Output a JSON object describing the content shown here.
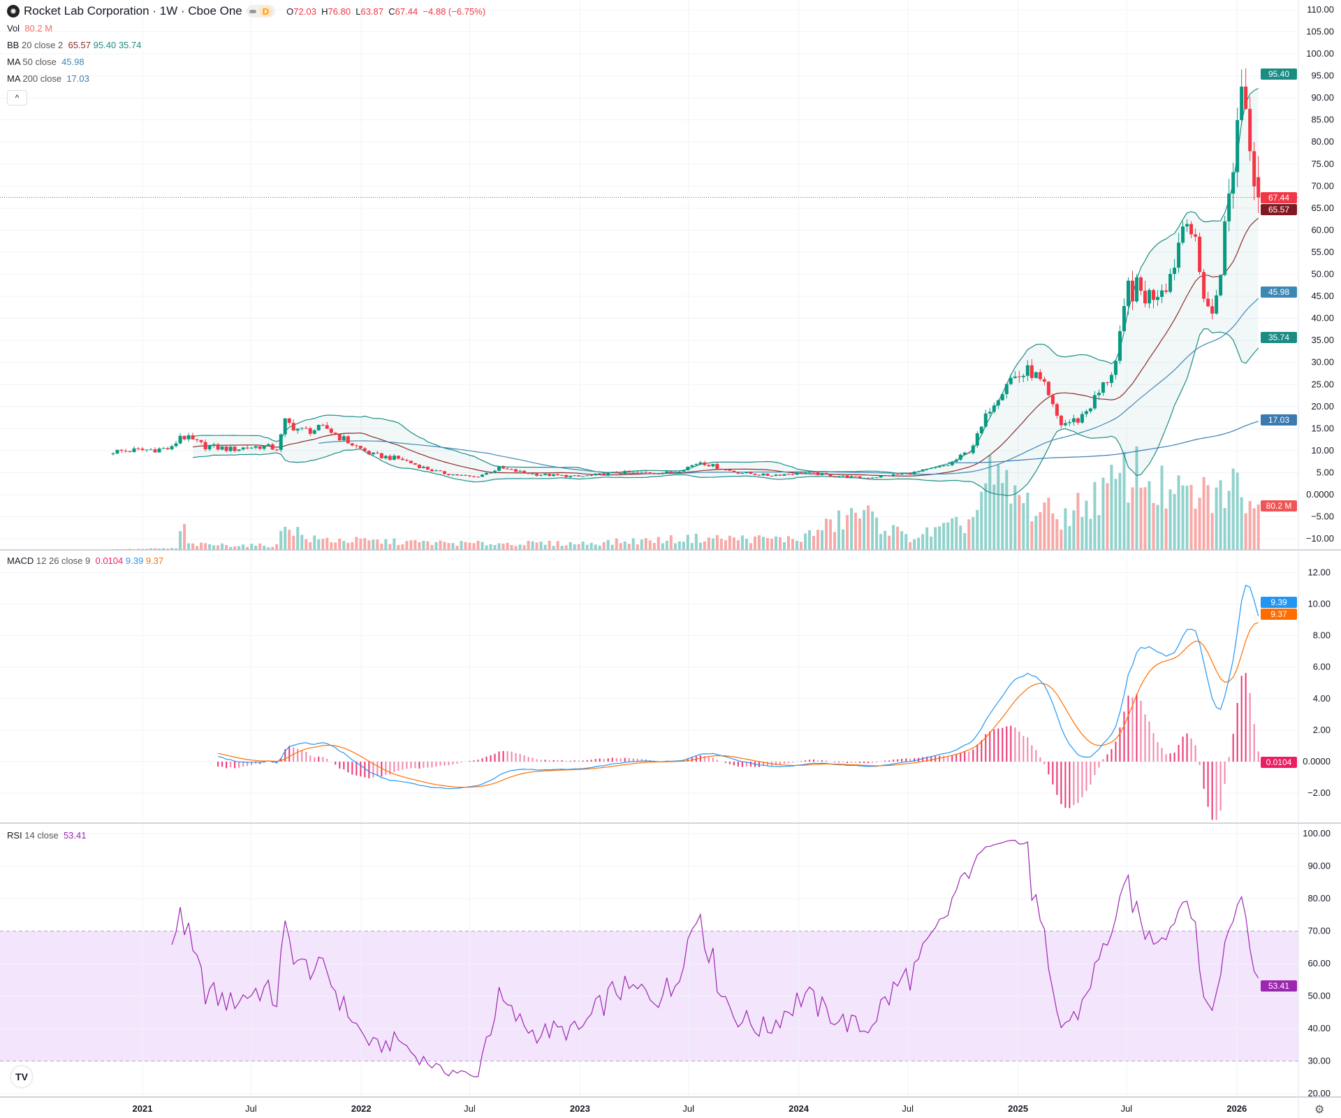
{
  "header": {
    "title": "Rocket Lab Corporation · 1W · Cboe One",
    "pill_label": "D",
    "open_label": "O",
    "open": "72.03",
    "high_label": "H",
    "high": "76.80",
    "low_label": "L",
    "low": "63.87",
    "close_label": "C",
    "close": "67.44",
    "change": "−4.88 (−6.75%)"
  },
  "indicators": {
    "vol": {
      "label": "Vol",
      "value": "80.2 M"
    },
    "bb": {
      "label": "BB",
      "params": "20 close 2",
      "basis": "65.57",
      "upper": "95.40",
      "lower": "35.74"
    },
    "ma50": {
      "label": "MA",
      "params": "50 close",
      "value": "45.98"
    },
    "ma200": {
      "label": "MA",
      "params": "200 close",
      "value": "17.03"
    },
    "macd": {
      "label": "MACD",
      "params": "12 26 close 9",
      "hist": "0.0104",
      "macd": "9.39",
      "signal": "9.37"
    },
    "rsi": {
      "label": "RSI",
      "params": "14 close",
      "value": "53.41"
    }
  },
  "collapse_icon": "chevron-up-icon",
  "badges": {
    "bb_upper": "95.40",
    "close": "67.44",
    "bb_basis": "65.57",
    "ma50": "45.98",
    "bb_lower": "35.74",
    "ma200": "17.03",
    "volume": "80.2 M",
    "macd": "9.39",
    "signal": "9.37",
    "hist": "0.0104",
    "rsi": "53.41"
  },
  "colors": {
    "up": "#089981",
    "down": "#f23645",
    "vol_up": "#92d2cc",
    "vol_down": "#f7a9a7",
    "bb_band": "#1b8c83",
    "bb_basis": "#8b2a2a",
    "ma50": "#3d87b5",
    "ma200": "#3a7ab0",
    "macd": "#2196f3",
    "signal": "#ff6d00",
    "hist": "#e91e63",
    "rsi": "#9c27b0",
    "rsi_band": "#f3e5fc"
  },
  "chart_data": {
    "type": "candlestick",
    "interval": "1W",
    "first_week": "2020-11-13",
    "last_week": "2026-02-06",
    "close_keypoints": [
      [
        "2020-11-13",
        9.8
      ],
      [
        "2021-02-19",
        10.5
      ],
      [
        "2021-03-05",
        13.5
      ],
      [
        "2021-04-16",
        11
      ],
      [
        "2021-05-28",
        10.3
      ],
      [
        "2021-07-16",
        11
      ],
      [
        "2021-08-13",
        10.5
      ],
      [
        "2021-08-27",
        16.5
      ],
      [
        "2021-09-24",
        14.5
      ],
      [
        "2021-11-05",
        15
      ],
      [
        "2021-12-10",
        12
      ],
      [
        "2022-01-21",
        9
      ],
      [
        "2022-03-11",
        8
      ],
      [
        "2022-05-13",
        5
      ],
      [
        "2022-07-08",
        4
      ],
      [
        "2022-08-19",
        6
      ],
      [
        "2022-10-21",
        4.6
      ],
      [
        "2022-12-30",
        4.1
      ],
      [
        "2023-03-03",
        5
      ],
      [
        "2023-06-02",
        5
      ],
      [
        "2023-07-21",
        7.5
      ],
      [
        "2023-09-15",
        5.2
      ],
      [
        "2023-11-10",
        4.4
      ],
      [
        "2024-01-12",
        5
      ],
      [
        "2024-04-19",
        3.8
      ],
      [
        "2024-07-12",
        5
      ],
      [
        "2024-09-06",
        6.8
      ],
      [
        "2024-10-11",
        10
      ],
      [
        "2024-11-15",
        20
      ],
      [
        "2024-12-13",
        26
      ],
      [
        "2025-01-24",
        28
      ],
      [
        "2025-02-14",
        24
      ],
      [
        "2025-03-14",
        16
      ],
      [
        "2025-04-11",
        17
      ],
      [
        "2025-05-16",
        23
      ],
      [
        "2025-06-13",
        30
      ],
      [
        "2025-07-04",
        47
      ],
      [
        "2025-08-08",
        45
      ],
      [
        "2025-09-12",
        50
      ],
      [
        "2025-10-10",
        66
      ],
      [
        "2025-10-31",
        50
      ],
      [
        "2025-11-21",
        40
      ],
      [
        "2025-12-12",
        60
      ],
      [
        "2026-01-09",
        95
      ],
      [
        "2026-01-23",
        82
      ],
      [
        "2026-02-06",
        67.44
      ]
    ],
    "last_bar": {
      "open": 72.03,
      "high": 76.8,
      "low": 63.87,
      "close": 67.44,
      "volume_m": 80.2
    },
    "volume_keypoints_m": [
      [
        "2020-11-13",
        1
      ],
      [
        "2021-02-26",
        3
      ],
      [
        "2021-03-12",
        50
      ],
      [
        "2021-03-19",
        10
      ],
      [
        "2021-08-13",
        8
      ],
      [
        "2021-08-27",
        55
      ],
      [
        "2021-10-01",
        20
      ],
      [
        "2022-03-01",
        15
      ],
      [
        "2022-07-01",
        12
      ],
      [
        "2023-01-01",
        12
      ],
      [
        "2023-07-21",
        22
      ],
      [
        "2024-01-01",
        20
      ],
      [
        "2024-04-12",
        70
      ],
      [
        "2024-07-01",
        22
      ],
      [
        "2024-10-11",
        50
      ],
      [
        "2024-11-15",
        130
      ],
      [
        "2025-01-24",
        80
      ],
      [
        "2025-03-14",
        60
      ],
      [
        "2025-06-13",
        120
      ],
      [
        "2025-07-11",
        150
      ],
      [
        "2025-09-12",
        100
      ],
      [
        "2025-11-21",
        100
      ],
      [
        "2026-01-09",
        120
      ],
      [
        "2026-02-06",
        80.2
      ]
    ],
    "time_axis": [
      [
        "2021-01-01",
        "2021"
      ],
      [
        "2021-07-01",
        "Jul"
      ],
      [
        "2022-01-01",
        "2022"
      ],
      [
        "2022-07-01",
        "Jul"
      ],
      [
        "2023-01-01",
        "2023"
      ],
      [
        "2023-07-01",
        "Jul"
      ],
      [
        "2024-01-01",
        "2024"
      ],
      [
        "2024-07-01",
        "Jul"
      ],
      [
        "2025-01-01",
        "2025"
      ],
      [
        "2025-07-01",
        "Jul"
      ],
      [
        "2026-01-01",
        "2026"
      ]
    ],
    "price_axis": [
      "110.00",
      "105.00",
      "100.00",
      "95.00",
      "90.00",
      "85.00",
      "80.00",
      "75.00",
      "70.00",
      "65.00",
      "60.00",
      "55.00",
      "50.00",
      "45.00",
      "40.00",
      "35.00",
      "30.00",
      "25.00",
      "20.00",
      "15.00",
      "10.00",
      "5.00",
      "0.0000",
      "−5.00",
      "−10.00"
    ],
    "macd_axis": [
      "12.00",
      "10.00",
      "8.00",
      "6.00",
      "4.00",
      "2.00",
      "0.0000",
      "−2.00"
    ],
    "rsi_axis": [
      "100.00",
      "90.00",
      "80.00",
      "70.00",
      "60.00",
      "50.00",
      "40.00",
      "30.00",
      "20.00"
    ],
    "rsi_bands": [
      30,
      70
    ]
  }
}
